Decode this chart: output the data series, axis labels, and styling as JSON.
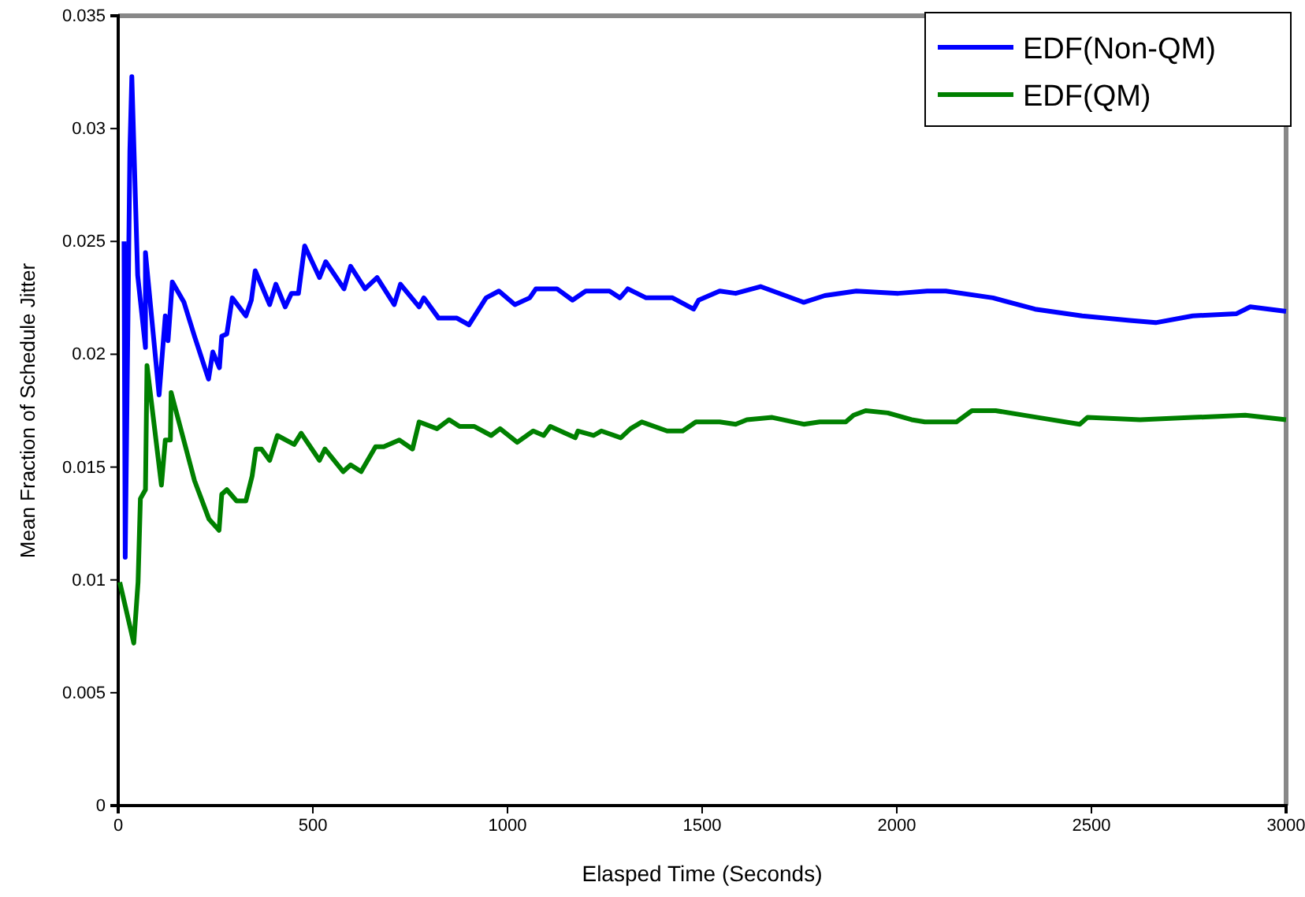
{
  "chart_data": {
    "type": "line",
    "xlabel": "Elasped Time (Seconds)",
    "ylabel": "Mean Fraction of Schedule Jitter",
    "xlim": [
      0,
      3000
    ],
    "xticks": [
      0,
      500,
      1000,
      1500,
      2000,
      2500,
      3000
    ],
    "ylim": [
      0,
      0.035
    ],
    "yticks": [
      0,
      0.005,
      0.01,
      0.015,
      0.02,
      0.025,
      0.03,
      0.035
    ],
    "grid": false,
    "legend": "top right",
    "marker": "none",
    "line_style": "solid",
    "series": [
      {
        "name": "EDF(Non-QM)",
        "color": "#0000ff",
        "x": [
          15,
          18,
          30,
          35,
          50,
          70,
          70,
          105,
          121,
          128,
          139,
          169,
          196,
          232,
          243,
          260,
          266,
          279,
          293,
          328,
          342,
          352,
          389,
          405,
          429,
          445,
          463,
          479,
          517,
          533,
          580,
          597,
          634,
          665,
          709,
          725,
          773,
          785,
          823,
          870,
          901,
          945,
          978,
          1019,
          1057,
          1073,
          1127,
          1167,
          1201,
          1262,
          1289,
          1309,
          1356,
          1424,
          1478,
          1491,
          1545,
          1586,
          1650,
          1761,
          1815,
          1896,
          2004,
          2078,
          2126,
          2247,
          2355,
          2476,
          2598,
          2665,
          2760,
          2873,
          2908,
          3000
        ],
        "values": [
          0.025,
          0.011,
          0.029,
          0.0323,
          0.0235,
          0.0203,
          0.0245,
          0.0182,
          0.0217,
          0.0206,
          0.0232,
          0.0223,
          0.0208,
          0.0189,
          0.0201,
          0.0194,
          0.0208,
          0.0209,
          0.0225,
          0.0217,
          0.0224,
          0.0237,
          0.0222,
          0.0231,
          0.0221,
          0.0227,
          0.0227,
          0.0248,
          0.0234,
          0.0241,
          0.0229,
          0.0239,
          0.0229,
          0.0234,
          0.0222,
          0.0231,
          0.0221,
          0.0225,
          0.0216,
          0.0216,
          0.0213,
          0.0225,
          0.0228,
          0.0222,
          0.0225,
          0.0229,
          0.0229,
          0.0224,
          0.0228,
          0.0228,
          0.0225,
          0.0229,
          0.0225,
          0.0225,
          0.022,
          0.0224,
          0.0228,
          0.0227,
          0.023,
          0.0223,
          0.0226,
          0.0228,
          0.0227,
          0.0228,
          0.0228,
          0.0225,
          0.022,
          0.0217,
          0.0215,
          0.0214,
          0.0217,
          0.0218,
          0.0221,
          0.0219
        ]
      },
      {
        "name": "EDF(QM)",
        "color": "#008000",
        "x": [
          4,
          40,
          51,
          57,
          70,
          74,
          111,
          121,
          134,
          136,
          196,
          233,
          259,
          266,
          279,
          304,
          328,
          344,
          354,
          368,
          389,
          409,
          452,
          470,
          517,
          531,
          578,
          597,
          624,
          661,
          682,
          722,
          756,
          773,
          819,
          850,
          877,
          915,
          958,
          981,
          1025,
          1066,
          1093,
          1110,
          1174,
          1181,
          1221,
          1241,
          1291,
          1316,
          1345,
          1410,
          1450,
          1484,
          1545,
          1586,
          1615,
          1680,
          1761,
          1802,
          1869,
          1889,
          1920,
          1977,
          2038,
          2072,
          2153,
          2193,
          2254,
          2362,
          2470,
          2490,
          2625,
          2760,
          2895,
          3000
        ],
        "values": [
          0.0099,
          0.0072,
          0.0099,
          0.0136,
          0.014,
          0.0195,
          0.0142,
          0.0162,
          0.0162,
          0.0183,
          0.0144,
          0.0127,
          0.0122,
          0.0138,
          0.014,
          0.0135,
          0.0135,
          0.0146,
          0.0158,
          0.0158,
          0.0153,
          0.0164,
          0.016,
          0.0165,
          0.0153,
          0.0158,
          0.0148,
          0.0151,
          0.0148,
          0.0159,
          0.0159,
          0.0162,
          0.0158,
          0.017,
          0.0167,
          0.0171,
          0.0168,
          0.0168,
          0.0164,
          0.0167,
          0.0161,
          0.0166,
          0.0164,
          0.0168,
          0.0163,
          0.0166,
          0.0164,
          0.0166,
          0.0163,
          0.0167,
          0.017,
          0.0166,
          0.0166,
          0.017,
          0.017,
          0.0169,
          0.0171,
          0.0172,
          0.0169,
          0.017,
          0.017,
          0.0173,
          0.0175,
          0.0174,
          0.0171,
          0.017,
          0.017,
          0.0175,
          0.0175,
          0.0172,
          0.0169,
          0.0172,
          0.0171,
          0.0172,
          0.0173,
          0.0171
        ]
      }
    ]
  }
}
